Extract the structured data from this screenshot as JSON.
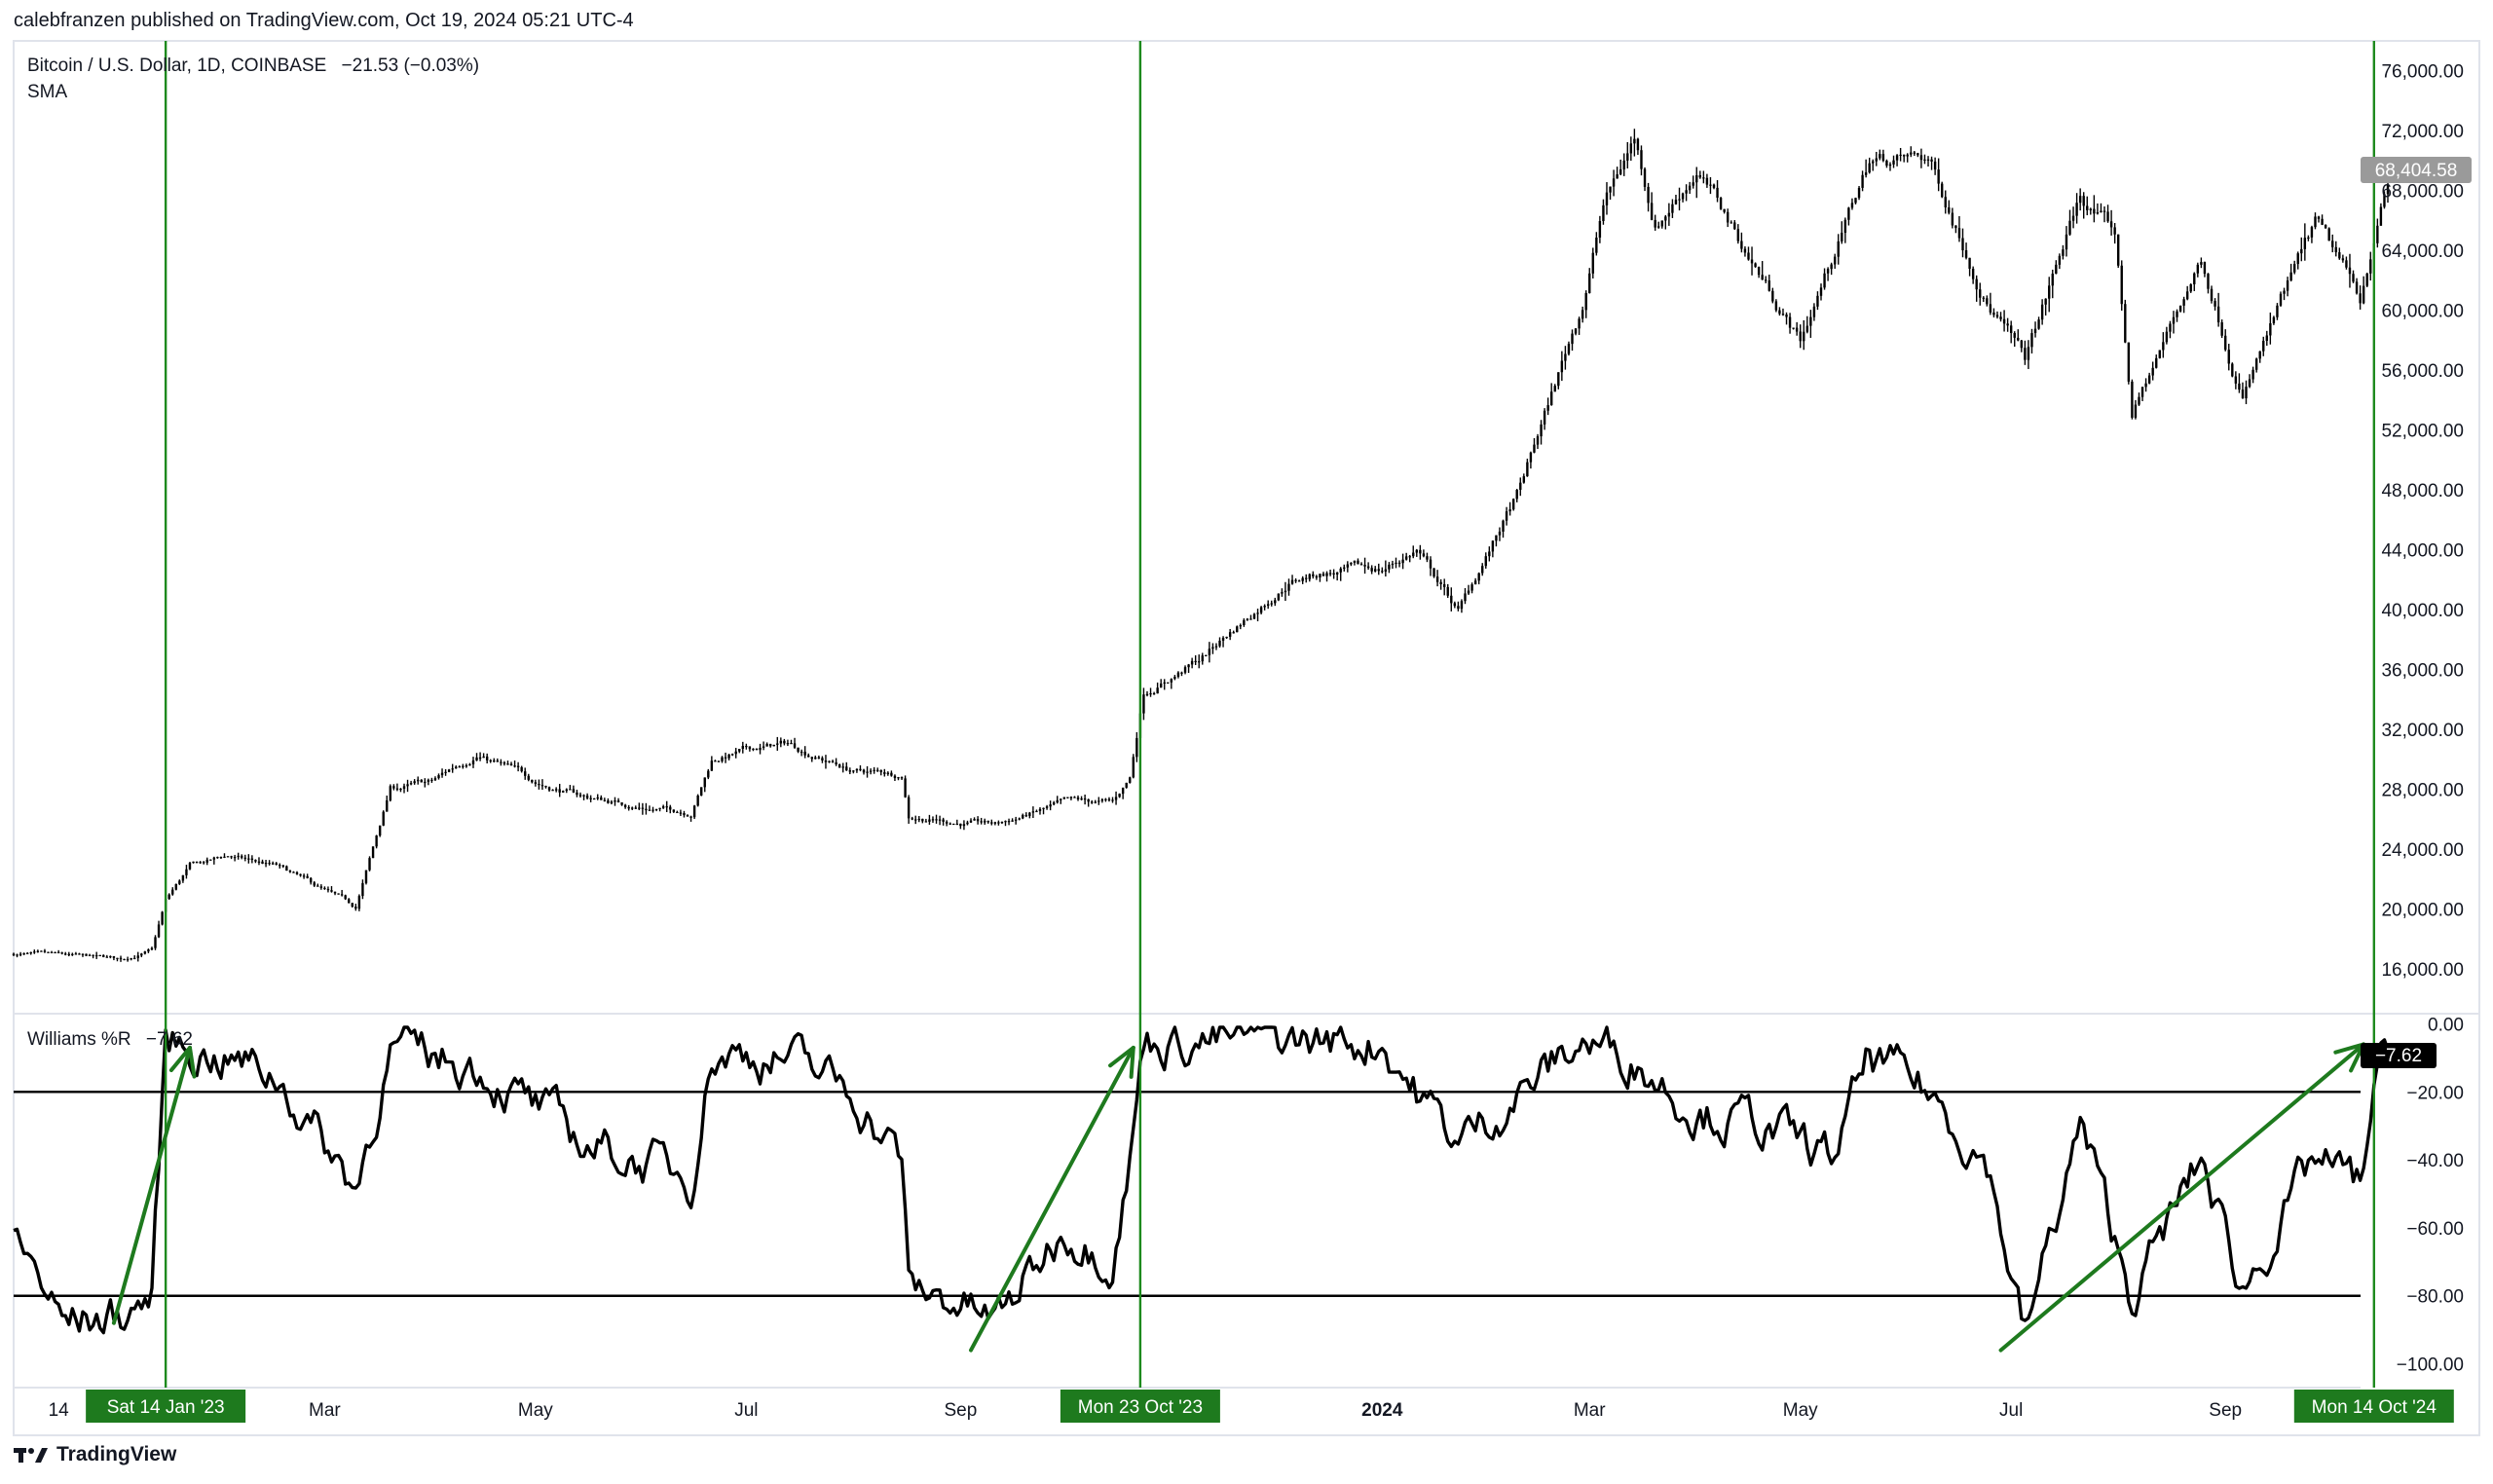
{
  "publisher_line": "calebfranzen published on TradingView.com, Oct 19, 2024 05:21 UTC-4",
  "brand": "TradingView",
  "colors": {
    "price": "#000000",
    "marker": "#1e8a1e",
    "marker_label_bg": "#1e7a1e",
    "arrow": "#1e7a1e",
    "price_tag_bg": "#9a9a9a",
    "wr_tag_bg": "#000000"
  },
  "chart_data": [
    {
      "type": "line",
      "title": "Bitcoin / U.S. Dollar, 1D, COINBASE",
      "change": "−21.53 (−0.03%)",
      "indicator": "SMA",
      "ylim": [
        13000,
        77000
      ],
      "y_ticks": [
        16000,
        20000,
        24000,
        28000,
        32000,
        36000,
        40000,
        44000,
        48000,
        52000,
        56000,
        60000,
        64000,
        68000,
        72000,
        76000
      ],
      "y_tick_labels": [
        "16,000.00",
        "20,000.00",
        "24,000.00",
        "28,000.00",
        "32,000.00",
        "36,000.00",
        "40,000.00",
        "44,000.00",
        "48,000.00",
        "52,000.00",
        "56,000.00",
        "60,000.00",
        "64,000.00",
        "68,000.00",
        "72,000.00",
        "76,000.00"
      ],
      "last_value": 68404.58,
      "last_value_label": "68,404.58",
      "x_dates": [
        "2022-12-01",
        "2022-12-15",
        "2023-01-01",
        "2023-01-10",
        "2023-01-14",
        "2023-01-21",
        "2023-02-01",
        "2023-02-15",
        "2023-03-10",
        "2023-03-20",
        "2023-04-01",
        "2023-04-14",
        "2023-05-01",
        "2023-05-15",
        "2023-06-01",
        "2023-06-15",
        "2023-06-21",
        "2023-07-01",
        "2023-07-13",
        "2023-08-01",
        "2023-08-15",
        "2023-08-17",
        "2023-09-01",
        "2023-09-11",
        "2023-10-01",
        "2023-10-15",
        "2023-10-20",
        "2023-10-24",
        "2023-11-09",
        "2023-12-05",
        "2023-12-15",
        "2024-01-01",
        "2024-01-11",
        "2024-01-23",
        "2024-02-10",
        "2024-02-28",
        "2024-03-05",
        "2024-03-14",
        "2024-03-20",
        "2024-04-01",
        "2024-04-15",
        "2024-05-01",
        "2024-05-21",
        "2024-06-07",
        "2024-06-24",
        "2024-07-05",
        "2024-07-21",
        "2024-07-31",
        "2024-08-05",
        "2024-08-25",
        "2024-09-06",
        "2024-09-27",
        "2024-10-10",
        "2024-10-14",
        "2024-10-18"
      ],
      "values": [
        17000,
        16800,
        16600,
        17200,
        20500,
        22800,
        23500,
        22800,
        20000,
        28000,
        28400,
        30400,
        28500,
        27500,
        26800,
        26500,
        30000,
        30600,
        31000,
        29200,
        29000,
        26300,
        25800,
        25600,
        27000,
        27000,
        28700,
        34500,
        36600,
        42000,
        42500,
        42600,
        44000,
        39800,
        48000,
        60500,
        67000,
        71500,
        65800,
        69500,
        64000,
        58000,
        70000,
        70000,
        61000,
        56500,
        67500,
        65000,
        53000,
        63500,
        54500,
        65500,
        60500,
        65000,
        68404.58
      ]
    },
    {
      "type": "line",
      "title": "Williams %R",
      "last_value": -7.62,
      "last_value_label": "−7.62",
      "ylim": [
        -107,
        3
      ],
      "y_ticks": [
        0,
        -20,
        -40,
        -60,
        -80,
        -100
      ],
      "y_tick_labels": [
        "0.00",
        "−20.00",
        "−40.00",
        "−60.00",
        "−80.00",
        "−100.00"
      ],
      "levels": [
        -20,
        -80
      ],
      "x_dates": [
        "2022-12-01",
        "2022-12-15",
        "2023-01-01",
        "2023-01-10",
        "2023-01-14",
        "2023-02-01",
        "2023-02-15",
        "2023-03-10",
        "2023-03-20",
        "2023-04-14",
        "2023-05-01",
        "2023-05-15",
        "2023-06-15",
        "2023-06-21",
        "2023-07-13",
        "2023-08-01",
        "2023-08-15",
        "2023-08-17",
        "2023-09-01",
        "2023-09-11",
        "2023-10-01",
        "2023-10-15",
        "2023-10-20",
        "2023-10-24",
        "2023-11-15",
        "2023-12-15",
        "2024-01-01",
        "2024-01-11",
        "2024-01-23",
        "2024-02-10",
        "2024-02-28",
        "2024-03-14",
        "2024-04-01",
        "2024-04-20",
        "2024-05-10",
        "2024-05-21",
        "2024-06-07",
        "2024-06-24",
        "2024-07-05",
        "2024-07-21",
        "2024-08-05",
        "2024-08-25",
        "2024-09-06",
        "2024-09-27",
        "2024-10-10",
        "2024-10-14",
        "2024-10-18"
      ],
      "values": [
        -60,
        -88,
        -86,
        -80,
        -5,
        -10,
        -15,
        -48,
        -8,
        -12,
        -25,
        -35,
        -45,
        -8,
        -10,
        -20,
        -40,
        -78,
        -82,
        -88,
        -60,
        -68,
        -40,
        -5,
        -5,
        -5,
        -5,
        -20,
        -35,
        -20,
        -5,
        -10,
        -25,
        -30,
        -40,
        -10,
        -20,
        -40,
        -92,
        -30,
        -80,
        -40,
        -78,
        -40,
        -48,
        -20,
        -7.62
      ]
    }
  ],
  "x_axis": {
    "labels": [
      {
        "text": "14",
        "date": "2022-12-14"
      },
      {
        "text": "Mar",
        "date": "2023-03-01"
      },
      {
        "text": "May",
        "date": "2023-05-01"
      },
      {
        "text": "Jul",
        "date": "2023-07-01"
      },
      {
        "text": "Sep",
        "date": "2023-09-01"
      },
      {
        "text": "2024",
        "date": "2024-01-01",
        "bold": true
      },
      {
        "text": "Mar",
        "date": "2024-03-01"
      },
      {
        "text": "May",
        "date": "2024-05-01"
      },
      {
        "text": "Jul",
        "date": "2024-07-01"
      },
      {
        "text": "Sep",
        "date": "2024-09-01"
      }
    ],
    "markers": [
      {
        "text": "Sat 14 Jan '23",
        "date": "2023-01-14"
      },
      {
        "text": "Mon 23 Oct '23",
        "date": "2023-10-23"
      },
      {
        "text": "Mon 14 Oct '24",
        "date": "2024-10-14"
      }
    ]
  },
  "annotations": {
    "arrows": [
      {
        "from": {
          "date": "2022-12-30",
          "wr": -88
        },
        "to": {
          "date": "2023-01-21",
          "wr": -7
        }
      },
      {
        "from": {
          "date": "2023-09-04",
          "wr": -96
        },
        "to": {
          "date": "2023-10-21",
          "wr": -7
        }
      },
      {
        "from": {
          "date": "2024-06-28",
          "wr": -96
        },
        "to": {
          "date": "2024-10-11",
          "wr": -6
        }
      }
    ]
  }
}
